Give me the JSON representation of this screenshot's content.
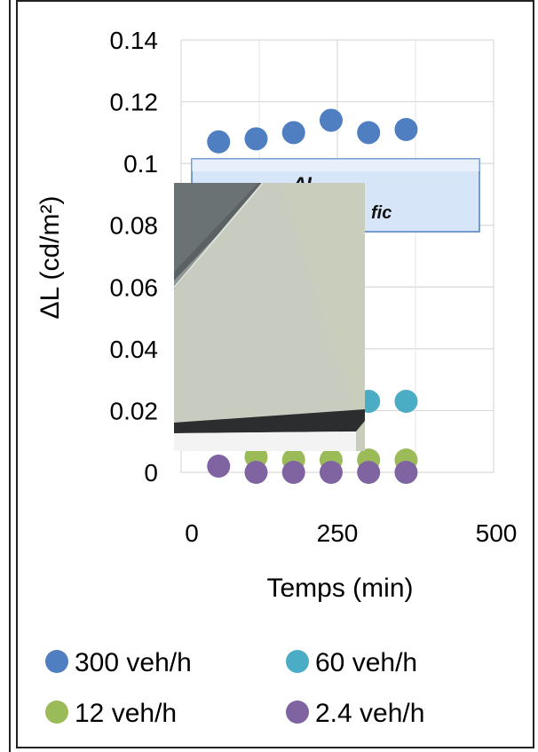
{
  "chart_data": {
    "type": "scatter",
    "title": "",
    "xlabel": "Temps (min)",
    "ylabel": "ΔL (cd/m²)",
    "xlim": [
      0,
      500
    ],
    "ylim": [
      0,
      0.14
    ],
    "x_ticks": [
      "0",
      "250",
      "500"
    ],
    "y_ticks": [
      "0",
      "0.02",
      "0.04",
      "0.06",
      "0.08",
      "0.1",
      "0.12",
      "0.14"
    ],
    "grid": true,
    "legend_position": "bottom",
    "series": [
      {
        "name": "300 veh/h",
        "color": "#4f7fc1",
        "points": [
          [
            60,
            0.107
          ],
          [
            120,
            0.108
          ],
          [
            180,
            0.11
          ],
          [
            240,
            0.114
          ],
          [
            300,
            0.11
          ],
          [
            360,
            0.111
          ]
        ]
      },
      {
        "name": "60 veh/h",
        "color": "#4bacc6",
        "points": [
          [
            300,
            0.023
          ],
          [
            360,
            0.023
          ]
        ]
      },
      {
        "name": "12 veh/h",
        "color": "#9bbb59",
        "points": [
          [
            120,
            0.005
          ],
          [
            180,
            0.004
          ],
          [
            240,
            0.004
          ],
          [
            300,
            0.004
          ],
          [
            360,
            0.004
          ]
        ]
      },
      {
        "name": "2.4 veh/h",
        "color": "#8064a2",
        "points": [
          [
            60,
            0.002
          ],
          [
            120,
            0.0
          ],
          [
            180,
            0.0
          ],
          [
            240,
            0.0
          ],
          [
            300,
            0.0
          ],
          [
            360,
            0.0
          ]
        ]
      }
    ]
  },
  "annotation": {
    "text_a": "ΔL",
    "text_b": "fic"
  }
}
